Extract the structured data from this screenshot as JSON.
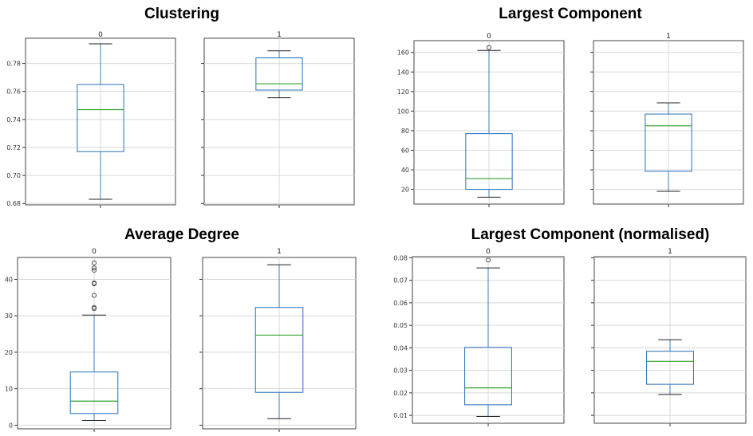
{
  "chart_data": [
    {
      "type": "box",
      "title": "Clustering",
      "ylim": [
        0.679,
        0.798
      ],
      "yticks": [
        0.68,
        0.7,
        0.72,
        0.74,
        0.76,
        0.78
      ],
      "tick_labels": [
        "0.68",
        "0.70",
        "0.72",
        "0.74",
        "0.76",
        "0.78"
      ],
      "groups": [
        {
          "label": "0",
          "min": 0.683,
          "q1": 0.717,
          "median": 0.747,
          "q3": 0.765,
          "max": 0.794,
          "fliers": []
        },
        {
          "label": "1",
          "min": 0.7555,
          "q1": 0.761,
          "median": 0.7655,
          "q3": 0.784,
          "max": 0.789,
          "fliers": []
        }
      ]
    },
    {
      "type": "box",
      "title": "Largest Component",
      "ylim": [
        5,
        172
      ],
      "yticks": [
        20,
        40,
        60,
        80,
        100,
        120,
        140,
        160
      ],
      "tick_labels": [
        "20",
        "40",
        "60",
        "80",
        "100",
        "120",
        "140",
        "160"
      ],
      "groups": [
        {
          "label": "0",
          "min": 12,
          "q1": 20,
          "median": 31,
          "q3": 77,
          "max": 162,
          "fliers": [
            165
          ]
        },
        {
          "label": "1",
          "min": 18,
          "q1": 38.5,
          "median": 85,
          "q3": 97,
          "max": 108.5,
          "fliers": []
        }
      ]
    },
    {
      "type": "box",
      "title": "Average Degree",
      "ylim": [
        -1,
        46
      ],
      "yticks": [
        0,
        10,
        20,
        30,
        40
      ],
      "tick_labels": [
        "0",
        "10",
        "20",
        "30",
        "40"
      ],
      "groups": [
        {
          "label": "0",
          "min": 1.3,
          "q1": 3.2,
          "median": 6.6,
          "q3": 14.6,
          "max": 30.2,
          "fliers": [
            32,
            32.3,
            35.6,
            38.8,
            39,
            42.5,
            43.1,
            44.5
          ]
        },
        {
          "label": "1",
          "min": 1.8,
          "q1": 9,
          "median": 24.7,
          "q3": 32.3,
          "max": 44,
          "fliers": []
        }
      ]
    },
    {
      "type": "box",
      "title": "Largest Component (normalised)",
      "ylim": [
        0.0065,
        0.0805
      ],
      "yticks": [
        0.01,
        0.02,
        0.03,
        0.04,
        0.05,
        0.06,
        0.07,
        0.08
      ],
      "tick_labels": [
        "0.01",
        "0.02",
        "0.03",
        "0.04",
        "0.05",
        "0.06",
        "0.07",
        "0.08"
      ],
      "groups": [
        {
          "label": "0",
          "min": 0.0095,
          "q1": 0.0147,
          "median": 0.0222,
          "q3": 0.0402,
          "max": 0.0755,
          "fliers": [
            0.079
          ]
        },
        {
          "label": "1",
          "min": 0.0193,
          "q1": 0.0238,
          "median": 0.034,
          "q3": 0.0385,
          "max": 0.0436,
          "fliers": []
        }
      ]
    }
  ]
}
